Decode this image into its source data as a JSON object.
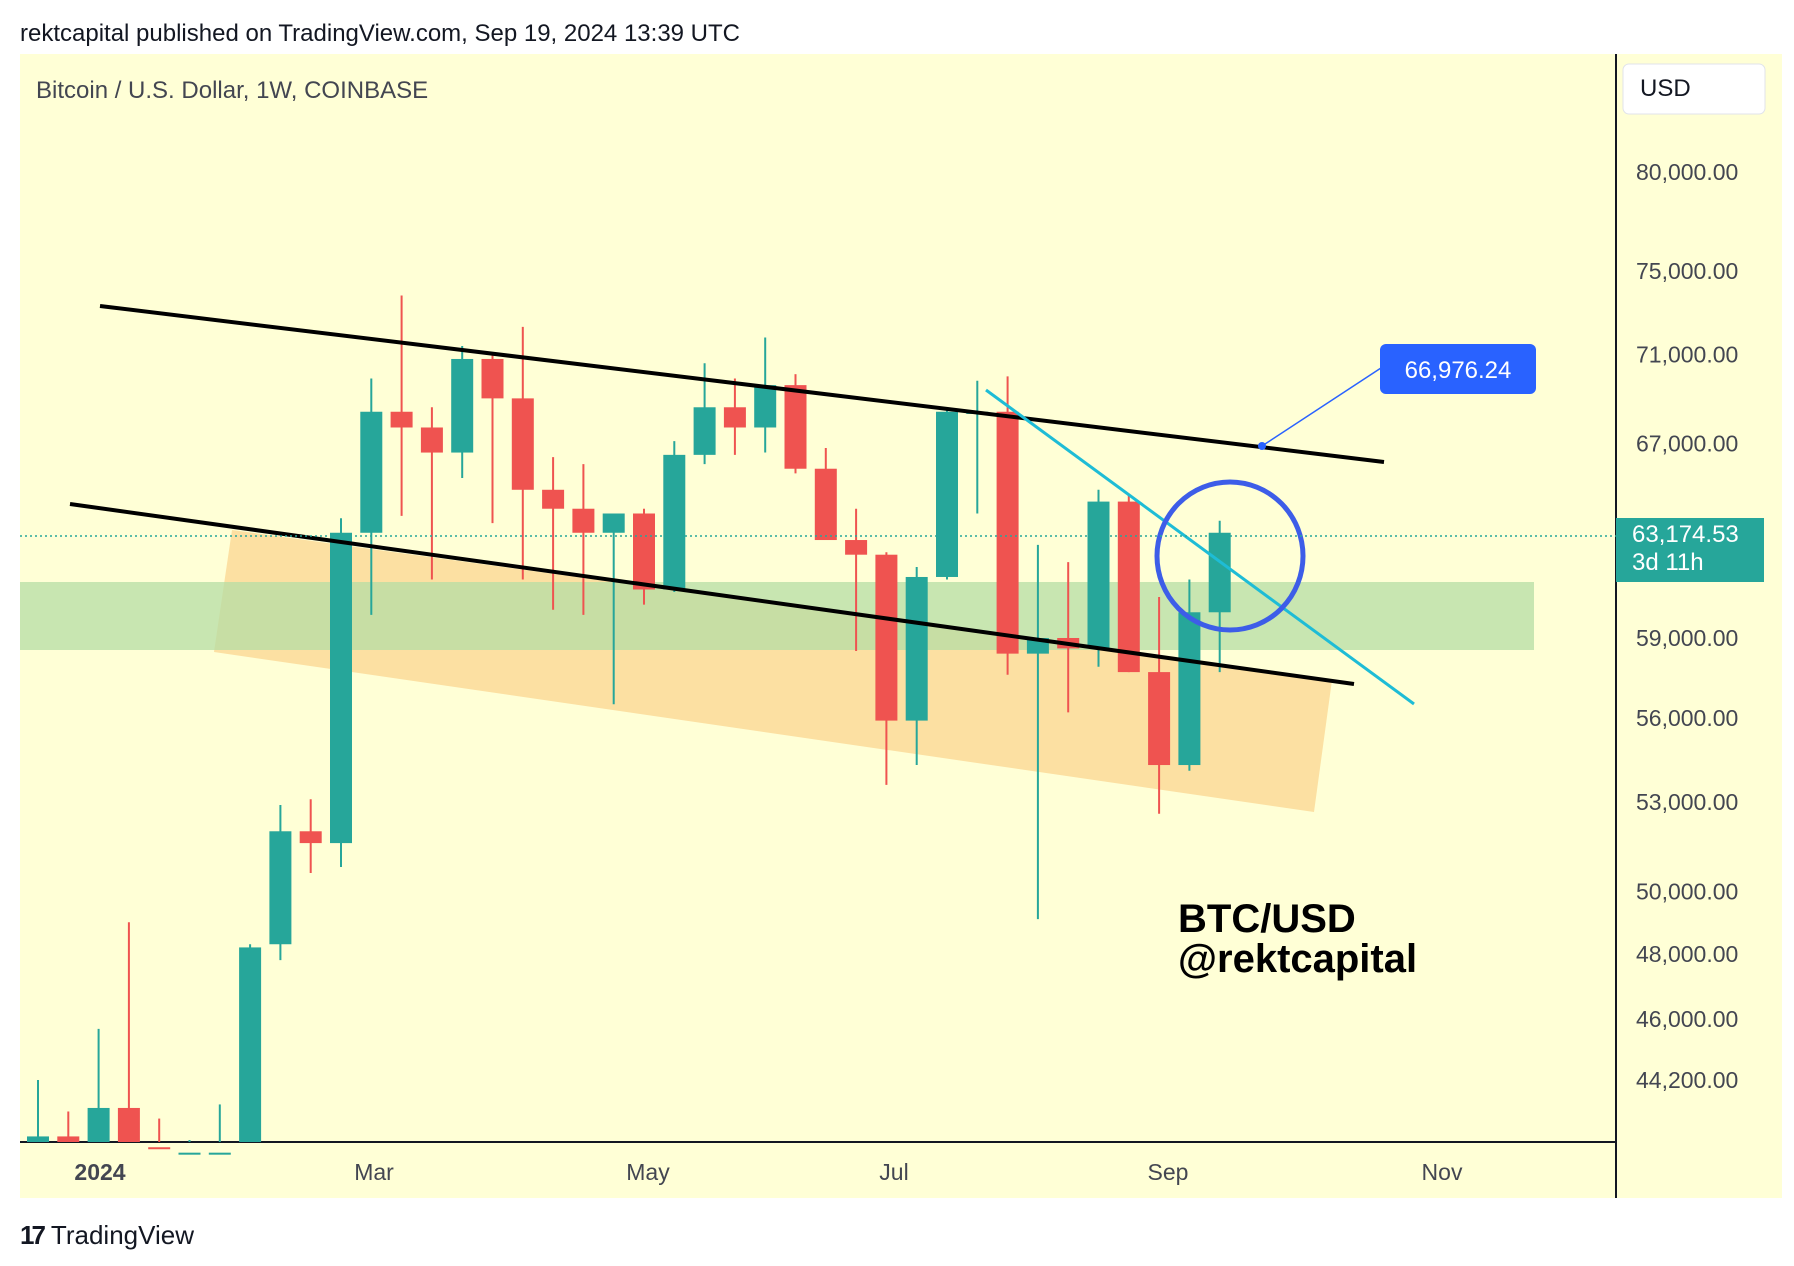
{
  "header": {
    "publisher_line": "rektcapital published on TradingView.com, Sep 19, 2024 13:39 UTC"
  },
  "chart": {
    "symbol_title": "Bitcoin / U.S. Dollar, 1W, COINBASE",
    "currency_button": "USD",
    "watermark_line1": "BTC/USD",
    "watermark_line2": "@rektcapital",
    "target_label": "66,976.24",
    "last_price_label": "63,174.53",
    "countdown_label": "3d 11h"
  },
  "colors": {
    "background": "#ffffd6",
    "up": "#26a69a",
    "down": "#ef5350",
    "channel": "#000000",
    "trendline": "#1ebcd6",
    "circle": "#3d5de8",
    "label_blue": "#2962ff",
    "support_band": "#b6dda4",
    "zone": "#fbd690"
  },
  "chart_data": {
    "type": "candlestick",
    "x_ticks": [
      "2024",
      "Mar",
      "May",
      "Jul",
      "Sep",
      "Nov"
    ],
    "y_ticks": [
      "80,000.00",
      "75,000.00",
      "71,000.00",
      "67,000.00",
      "59,000.00",
      "56,000.00",
      "53,000.00",
      "50,000.00",
      "48,000.00",
      "46,000.00",
      "44,200.00"
    ],
    "y_scale": "log",
    "candles": [
      {
        "o": 42300,
        "h": 44200,
        "l": 42000,
        "c": 42600
      },
      {
        "o": 42600,
        "h": 43300,
        "l": 42000,
        "c": 42300
      },
      {
        "o": 42300,
        "h": 45700,
        "l": 42000,
        "c": 43400
      },
      {
        "o": 43400,
        "h": 49000,
        "l": 42000,
        "c": 42300
      },
      {
        "o": 42300,
        "h": 43100,
        "l": 42000,
        "c": 42150
      },
      {
        "o": 42100,
        "h": 42500,
        "l": 42000,
        "c": 42150
      },
      {
        "o": 42100,
        "h": 43500,
        "l": 42000,
        "c": 42150
      },
      {
        "o": 42200,
        "h": 48300,
        "l": 42000,
        "c": 48200
      },
      {
        "o": 48300,
        "h": 52900,
        "l": 47800,
        "c": 52000
      },
      {
        "o": 52000,
        "h": 53100,
        "l": 50600,
        "c": 51600
      },
      {
        "o": 51600,
        "h": 63800,
        "l": 50800,
        "c": 63200
      },
      {
        "o": 63200,
        "h": 69900,
        "l": 59900,
        "c": 68400
      },
      {
        "o": 68400,
        "h": 73800,
        "l": 63900,
        "c": 67700
      },
      {
        "o": 67700,
        "h": 68600,
        "l": 61300,
        "c": 66600
      },
      {
        "o": 66600,
        "h": 71400,
        "l": 65500,
        "c": 70800
      },
      {
        "o": 70800,
        "h": 71000,
        "l": 63600,
        "c": 69000
      },
      {
        "o": 69000,
        "h": 72300,
        "l": 61300,
        "c": 65000
      },
      {
        "o": 65000,
        "h": 66400,
        "l": 60100,
        "c": 64200
      },
      {
        "o": 64200,
        "h": 66100,
        "l": 59900,
        "c": 63200
      },
      {
        "o": 63200,
        "h": 64000,
        "l": 56500,
        "c": 64000
      },
      {
        "o": 64000,
        "h": 64200,
        "l": 60300,
        "c": 60900
      },
      {
        "o": 60900,
        "h": 67100,
        "l": 60800,
        "c": 66500
      },
      {
        "o": 66500,
        "h": 70600,
        "l": 66100,
        "c": 68600
      },
      {
        "o": 68600,
        "h": 69900,
        "l": 66500,
        "c": 67700
      },
      {
        "o": 67700,
        "h": 71800,
        "l": 66600,
        "c": 69600
      },
      {
        "o": 69600,
        "h": 70100,
        "l": 65700,
        "c": 65900
      },
      {
        "o": 65900,
        "h": 66800,
        "l": 62900,
        "c": 62900
      },
      {
        "o": 62900,
        "h": 64200,
        "l": 58500,
        "c": 62300
      },
      {
        "o": 62300,
        "h": 62400,
        "l": 53600,
        "c": 55900
      },
      {
        "o": 55900,
        "h": 61800,
        "l": 54300,
        "c": 61400
      },
      {
        "o": 61400,
        "h": 68500,
        "l": 61300,
        "c": 68400
      },
      {
        "o": 68300,
        "h": 69800,
        "l": 64000,
        "c": 68400
      },
      {
        "o": 68400,
        "h": 70000,
        "l": 57600,
        "c": 58400
      },
      {
        "o": 58400,
        "h": 62700,
        "l": 49100,
        "c": 59000
      },
      {
        "o": 59000,
        "h": 62000,
        "l": 56200,
        "c": 58600
      },
      {
        "o": 58600,
        "h": 65000,
        "l": 57900,
        "c": 64500
      },
      {
        "o": 64500,
        "h": 64800,
        "l": 57700,
        "c": 57700
      },
      {
        "o": 57700,
        "h": 60600,
        "l": 52600,
        "c": 54300
      },
      {
        "o": 54300,
        "h": 61300,
        "l": 54100,
        "c": 60000
      },
      {
        "o": 60000,
        "h": 63700,
        "l": 57700,
        "c": 63200
      }
    ],
    "target_value": 66976.24,
    "last_price": 63174.53
  }
}
